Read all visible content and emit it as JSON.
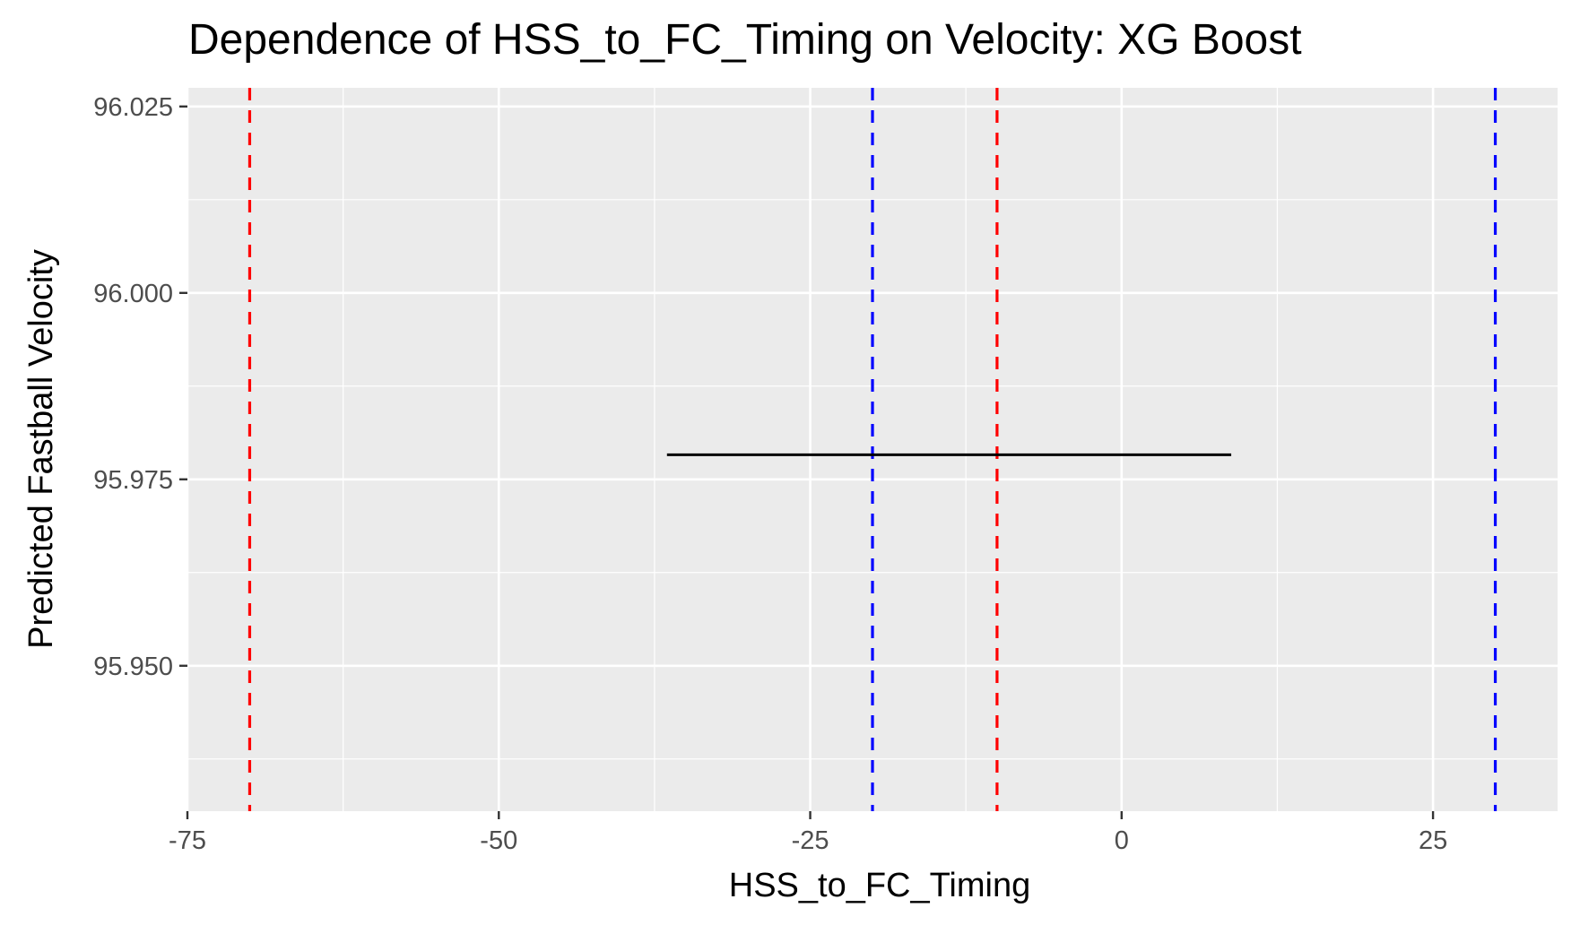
{
  "chart_data": {
    "type": "line",
    "title": "Dependence of HSS_to_FC_Timing on Velocity: XG Boost",
    "xlabel": "HSS_to_FC_Timing",
    "ylabel": "Predicted Fastball Velocity",
    "xlim": [
      -75,
      35
    ],
    "ylim": [
      95.9305,
      96.0275
    ],
    "x_ticks": [
      -75,
      -50,
      -25,
      0,
      25
    ],
    "x_tick_labels": [
      "-75",
      "-50",
      "-25",
      "0",
      "25"
    ],
    "y_ticks": [
      95.95,
      95.975,
      96.0,
      96.025
    ],
    "y_tick_labels": [
      "95.950",
      "95.975",
      "96.000",
      "96.025"
    ],
    "grid": true,
    "legend": "none",
    "series": [
      {
        "x": [
          -36.5,
          8.8
        ],
        "y": [
          95.9783,
          95.9783
        ],
        "color": "#000000"
      }
    ],
    "reference_lines": [
      {
        "x": -70,
        "color": "#ff0000",
        "style": "dashed"
      },
      {
        "x": -10,
        "color": "#ff0000",
        "style": "dashed"
      },
      {
        "x": -20,
        "color": "#0000ff",
        "style": "dashed"
      },
      {
        "x": 30,
        "color": "#0000ff",
        "style": "dashed"
      }
    ],
    "colors": {
      "panel": "#ebebeb",
      "grid": "#ffffff",
      "axis": "#333333"
    }
  }
}
